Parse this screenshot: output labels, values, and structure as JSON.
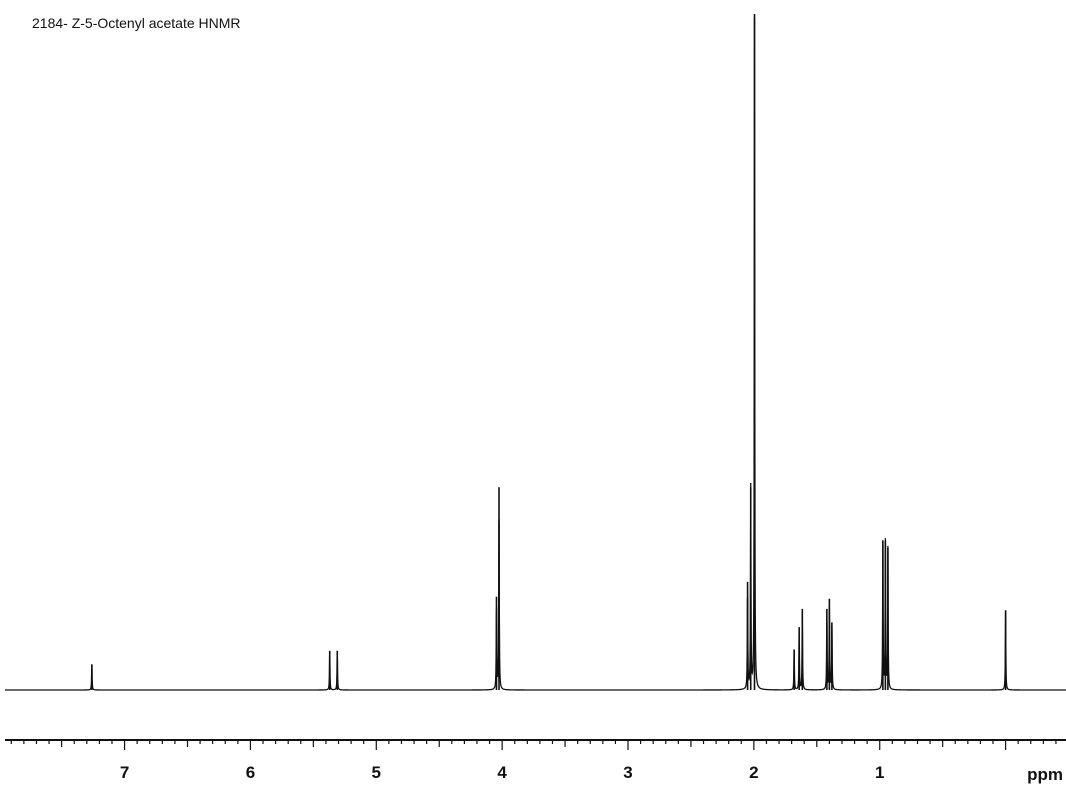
{
  "chart_data": {
    "type": "line",
    "title": "2184- Z-5-Octenyl acetate HNMR",
    "xlabel": "ppm",
    "ylabel": "",
    "x_reversed": true,
    "xlim": [
      7.95,
      -0.48
    ],
    "ylim": [
      0,
      1.0
    ],
    "x_ticks": [
      7,
      6,
      5,
      4,
      3,
      2,
      1
    ],
    "x_tick_labels": [
      "7",
      "6",
      "5",
      "4",
      "3",
      "2",
      "1"
    ],
    "peaks": [
      {
        "ppm": 7.26,
        "height": 0.038,
        "shape": "singlet"
      },
      {
        "ppm": 5.37,
        "height": 0.058,
        "shape": "multiplet"
      },
      {
        "ppm": 5.31,
        "height": 0.058,
        "shape": "multiplet"
      },
      {
        "ppm": 4.045,
        "height": 0.138,
        "shape": "triplet"
      },
      {
        "ppm": 4.025,
        "height": 0.3,
        "shape": "triplet"
      },
      {
        "ppm": 2.05,
        "height": 0.16,
        "shape": "multiplet"
      },
      {
        "ppm": 2.025,
        "height": 0.3,
        "shape": "multiplet"
      },
      {
        "ppm": 1.995,
        "height": 1.0,
        "shape": "singlet"
      },
      {
        "ppm": 1.68,
        "height": 0.06,
        "shape": "multiplet"
      },
      {
        "ppm": 1.64,
        "height": 0.093,
        "shape": "multiplet"
      },
      {
        "ppm": 1.615,
        "height": 0.12,
        "shape": "multiplet"
      },
      {
        "ppm": 1.42,
        "height": 0.12,
        "shape": "multiplet"
      },
      {
        "ppm": 1.4,
        "height": 0.135,
        "shape": "multiplet"
      },
      {
        "ppm": 1.38,
        "height": 0.1,
        "shape": "multiplet"
      },
      {
        "ppm": 0.975,
        "height": 0.22,
        "shape": "triplet"
      },
      {
        "ppm": 0.955,
        "height": 0.22,
        "shape": "triplet"
      },
      {
        "ppm": 0.935,
        "height": 0.21,
        "shape": "triplet"
      },
      {
        "ppm": 0.0,
        "height": 0.118,
        "shape": "singlet"
      }
    ],
    "grid": false
  }
}
